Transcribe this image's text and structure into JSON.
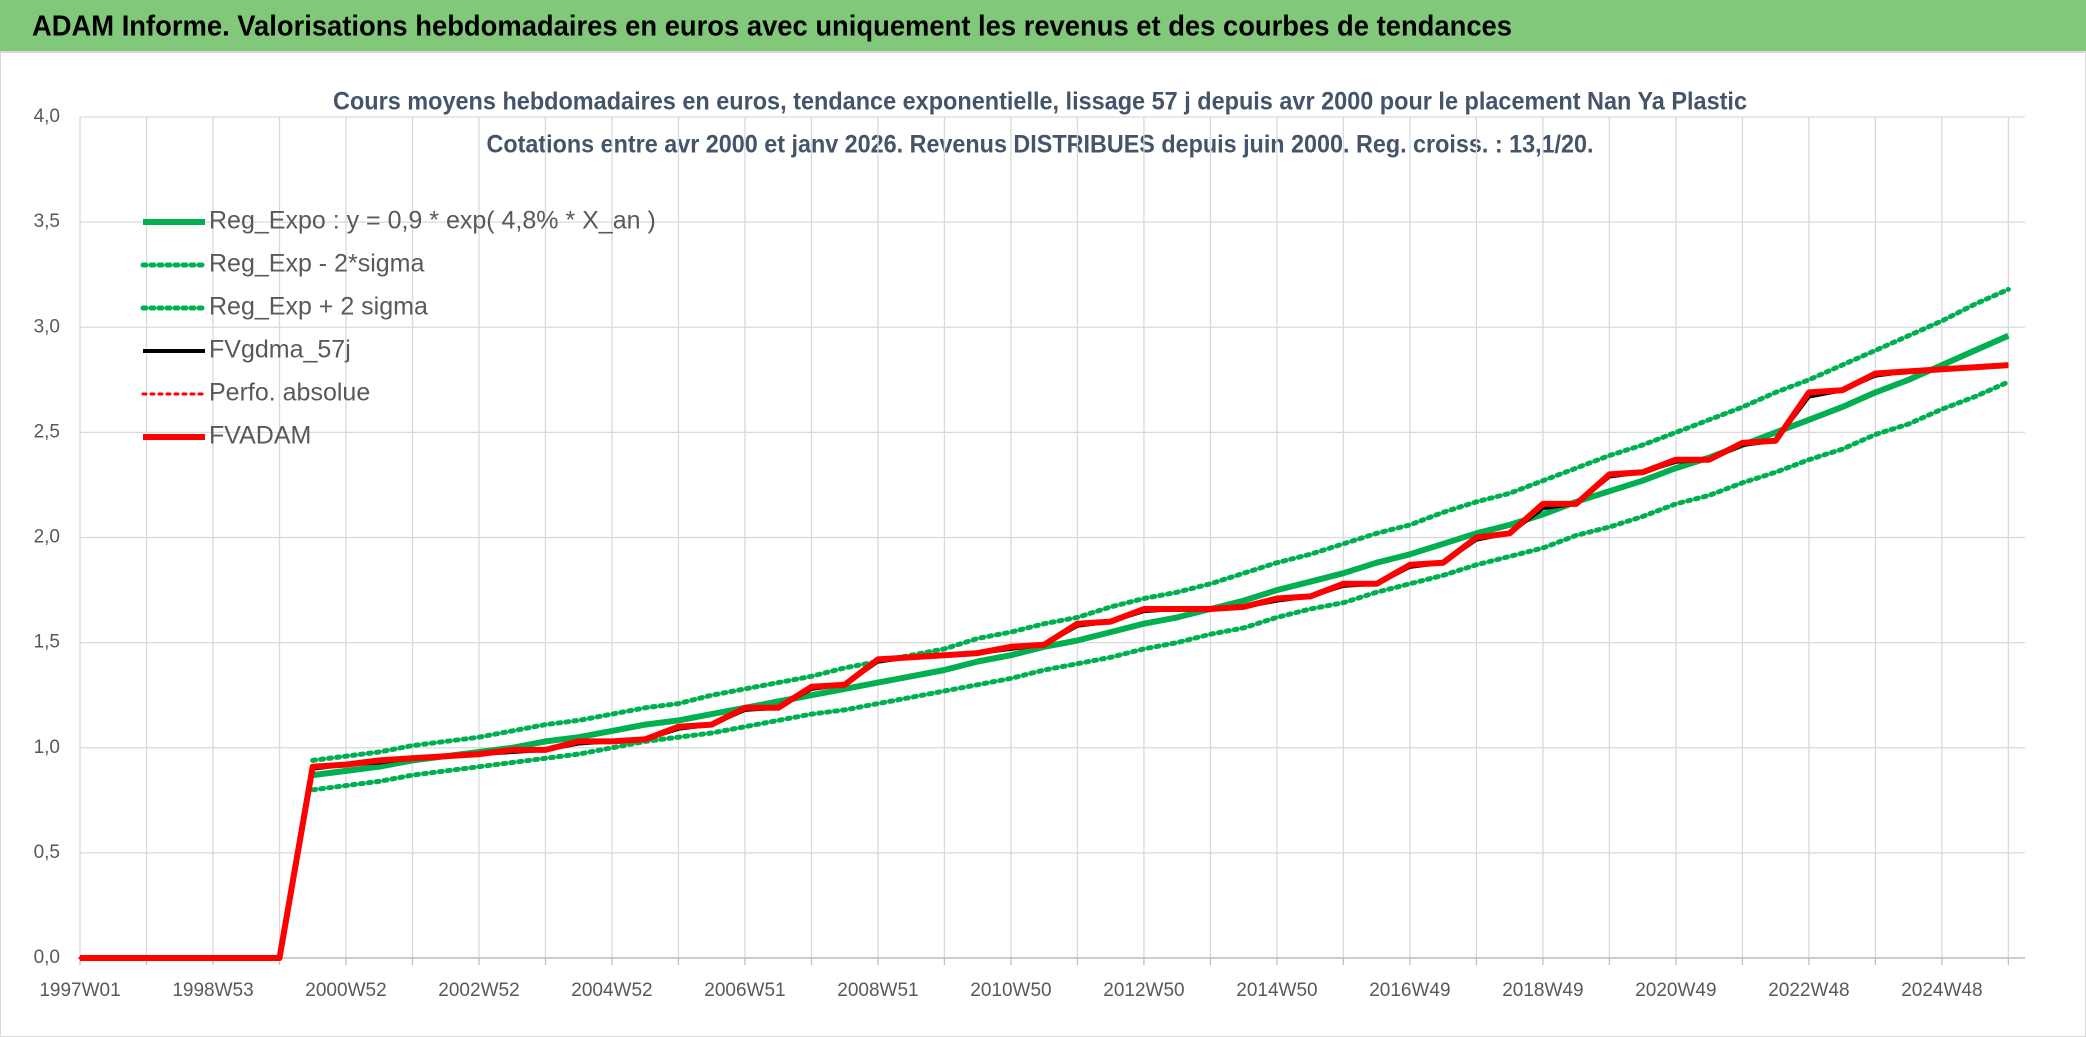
{
  "header": {
    "title": "ADAM Informe. Valorisations hebdomadaires en euros avec uniquement les revenus et des courbes de tendances"
  },
  "chart_data": {
    "type": "line",
    "title": "Cours moyens hebdomadaires en euros, tendance exponentielle, lissage 57 j depuis avr 2000 pour le placement Nan Ya Plastic",
    "subtitle": "Cotations entre avr 2000 et janv 2026. Revenus DISTRIBUES depuis juin 2000. Reg. croiss. : 13,1/20.",
    "categories": [
      "1997W01",
      null,
      null,
      null,
      "1998W53",
      null,
      null,
      null,
      "2000W52",
      null,
      null,
      null,
      "2002W52",
      null,
      null,
      null,
      "2004W52",
      null,
      null,
      null,
      "2006W51",
      null,
      null,
      null,
      "2008W51",
      null,
      null,
      null,
      "2010W50",
      null,
      null,
      null,
      "2012W50",
      null,
      null,
      null,
      "2014W50",
      null,
      null,
      null,
      "2016W49",
      null,
      null,
      null,
      "2018W49",
      null,
      null,
      null,
      "2020W49",
      null,
      null,
      null,
      "2022W48",
      null,
      null,
      null,
      "2024W48",
      null,
      null
    ],
    "ylim": [
      0,
      4
    ],
    "yticks": [
      {
        "value": 0,
        "label": "0,0"
      },
      {
        "value": 0.5,
        "label": "0,5"
      },
      {
        "value": 1,
        "label": "1,0"
      },
      {
        "value": 1.5,
        "label": "1,5"
      },
      {
        "value": 2,
        "label": "2,0"
      },
      {
        "value": 2.5,
        "label": "2,5"
      },
      {
        "value": 3,
        "label": "3,0"
      },
      {
        "value": 3.5,
        "label": "3,5"
      },
      {
        "value": 4,
        "label": "4,0"
      }
    ],
    "grid": true,
    "legend": "upper left",
    "series": [
      {
        "name": "Reg_Expo : y = 0,9 * exp( 4,8% *  X_an )",
        "color": "#00b050",
        "line_style": "solid",
        "linewidth": 6,
        "values": [
          null,
          null,
          null,
          null,
          null,
          null,
          null,
          0.87,
          0.89,
          0.91,
          0.94,
          0.96,
          0.98,
          1.0,
          1.03,
          1.05,
          1.08,
          1.11,
          1.13,
          1.16,
          1.19,
          1.22,
          1.25,
          1.28,
          1.31,
          1.34,
          1.37,
          1.41,
          1.44,
          1.48,
          1.51,
          1.55,
          1.59,
          1.62,
          1.66,
          1.7,
          1.75,
          1.79,
          1.83,
          1.88,
          1.92,
          1.97,
          2.02,
          2.06,
          2.11,
          2.17,
          2.22,
          2.27,
          2.33,
          2.38,
          2.44,
          2.5,
          2.56,
          2.62,
          2.69,
          2.75,
          2.82,
          2.89,
          2.96
        ]
      },
      {
        "name": "Reg_Exp - 2*sigma",
        "color": "#00b050",
        "line_style": "dotted",
        "linewidth": 5,
        "values": [
          null,
          null,
          null,
          null,
          null,
          null,
          null,
          0.8,
          0.82,
          0.84,
          0.87,
          0.89,
          0.91,
          0.93,
          0.95,
          0.97,
          1.0,
          1.03,
          1.05,
          1.07,
          1.1,
          1.13,
          1.16,
          1.18,
          1.21,
          1.24,
          1.27,
          1.3,
          1.33,
          1.37,
          1.4,
          1.43,
          1.47,
          1.5,
          1.54,
          1.57,
          1.62,
          1.66,
          1.69,
          1.74,
          1.78,
          1.82,
          1.87,
          1.91,
          1.95,
          2.01,
          2.05,
          2.1,
          2.16,
          2.2,
          2.26,
          2.31,
          2.37,
          2.42,
          2.49,
          2.54,
          2.61,
          2.67,
          2.74
        ]
      },
      {
        "name": "Reg_Exp + 2 sigma",
        "color": "#00b050",
        "line_style": "dotted",
        "linewidth": 5,
        "values": [
          null,
          null,
          null,
          null,
          null,
          null,
          null,
          0.94,
          0.96,
          0.98,
          1.01,
          1.03,
          1.05,
          1.08,
          1.11,
          1.13,
          1.16,
          1.19,
          1.21,
          1.25,
          1.28,
          1.31,
          1.34,
          1.38,
          1.41,
          1.44,
          1.47,
          1.52,
          1.55,
          1.59,
          1.62,
          1.67,
          1.71,
          1.74,
          1.78,
          1.83,
          1.88,
          1.92,
          1.97,
          2.02,
          2.06,
          2.12,
          2.17,
          2.21,
          2.27,
          2.33,
          2.39,
          2.44,
          2.5,
          2.56,
          2.62,
          2.69,
          2.75,
          2.82,
          2.89,
          2.96,
          3.03,
          3.11,
          3.18
        ]
      },
      {
        "name": "FVgdma_57j",
        "color": "#000000",
        "line_style": "solid",
        "linewidth": 4,
        "values": [
          null,
          null,
          null,
          null,
          null,
          null,
          null,
          0.9,
          0.92,
          0.93,
          0.95,
          0.96,
          0.97,
          0.98,
          0.99,
          1.02,
          1.03,
          1.04,
          1.09,
          1.11,
          1.18,
          1.19,
          1.28,
          1.3,
          1.41,
          1.43,
          1.44,
          1.45,
          1.47,
          1.49,
          1.58,
          1.6,
          1.65,
          1.66,
          1.66,
          1.67,
          1.7,
          1.72,
          1.77,
          1.78,
          1.86,
          1.88,
          1.99,
          2.02,
          2.14,
          2.16,
          2.29,
          2.31,
          2.36,
          2.37,
          2.44,
          2.46,
          2.67,
          2.7,
          2.77,
          2.79,
          2.8,
          2.81,
          2.82
        ]
      },
      {
        "name": "Perfo. absolue",
        "color": "#ff0000",
        "line_style": "dotted",
        "linewidth": 3,
        "values": [
          0,
          0,
          0,
          0,
          0,
          0,
          0,
          0.91,
          0.92,
          0.94,
          0.95,
          0.96,
          0.97,
          0.99,
          0.99,
          1.03,
          1.03,
          1.04,
          1.1,
          1.11,
          1.19,
          1.19,
          1.29,
          1.3,
          1.42,
          1.43,
          1.44,
          1.45,
          1.48,
          1.49,
          1.59,
          1.6,
          1.66,
          1.66,
          1.66,
          1.67,
          1.71,
          1.72,
          1.78,
          1.78,
          1.87,
          1.88,
          2.0,
          2.02,
          2.16,
          2.16,
          2.3,
          2.31,
          2.37,
          2.37,
          2.45,
          2.46,
          2.69,
          2.7,
          2.78,
          2.79,
          2.8,
          2.81,
          2.82
        ]
      },
      {
        "name": "FVADAM",
        "color": "#ff0000",
        "line_style": "solid",
        "linewidth": 6,
        "values": [
          0,
          0,
          0,
          0,
          0,
          0,
          0,
          0.91,
          0.92,
          0.94,
          0.95,
          0.96,
          0.97,
          0.99,
          0.99,
          1.03,
          1.03,
          1.04,
          1.1,
          1.11,
          1.19,
          1.19,
          1.29,
          1.3,
          1.42,
          1.43,
          1.44,
          1.45,
          1.48,
          1.49,
          1.59,
          1.6,
          1.66,
          1.66,
          1.66,
          1.67,
          1.71,
          1.72,
          1.78,
          1.78,
          1.87,
          1.88,
          2.0,
          2.02,
          2.16,
          2.16,
          2.3,
          2.31,
          2.37,
          2.37,
          2.45,
          2.46,
          2.69,
          2.7,
          2.78,
          2.79,
          2.8,
          2.81,
          2.82
        ]
      }
    ]
  }
}
